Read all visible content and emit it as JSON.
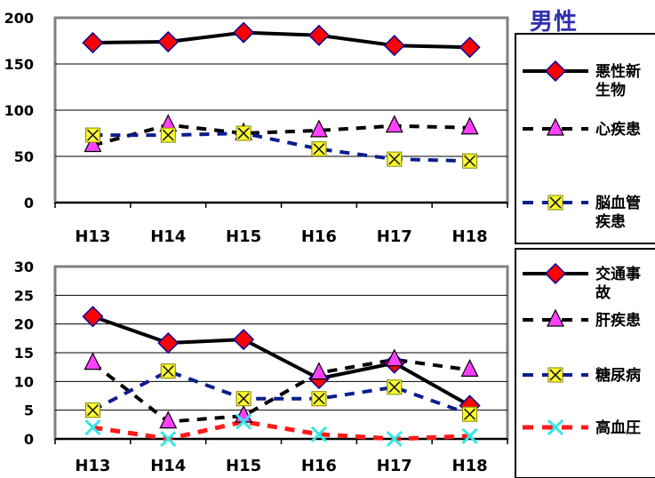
{
  "title": "男性",
  "colors": {
    "plot_bg": "#ffffff",
    "plot_border": "#808080",
    "grid": "#000000",
    "black": "#000000",
    "navy": "#0a1e8c",
    "red_line": "#ff1a1a",
    "diamond_fill": "#ff0000",
    "diamond_edge": "#0000a0",
    "triangle_fill": "#ff40ff",
    "square_fill": "#ffff33",
    "cross_color": "#33e6e6"
  },
  "chart_data": [
    {
      "type": "line",
      "x": [
        "H13",
        "H14",
        "H15",
        "H16",
        "H17",
        "H18"
      ],
      "ylim": [
        0,
        200
      ],
      "yticks": [
        0,
        50,
        100,
        150,
        200
      ],
      "grid": true,
      "legend_position": "right",
      "series": [
        {
          "name": "悪性新生物",
          "legend_lines": [
            "悪性新",
            "生物"
          ],
          "values": [
            173,
            174,
            184,
            181,
            170,
            168
          ],
          "line": "solid",
          "color": "black",
          "marker": "diamond"
        },
        {
          "name": "心疾患",
          "legend_lines": [
            "心疾患"
          ],
          "values": [
            62,
            84,
            75,
            78,
            83,
            81
          ],
          "line": "dashed",
          "color": "black",
          "marker": "triangle"
        },
        {
          "name": "脳血管疾患",
          "legend_lines": [
            "脳血管",
            "疾患"
          ],
          "values": [
            73,
            73,
            75,
            58,
            47,
            45
          ],
          "line": "dashed",
          "color": "navy",
          "marker": "square-x"
        }
      ]
    },
    {
      "type": "line",
      "x": [
        "H13",
        "H14",
        "H15",
        "H16",
        "H17",
        "H18"
      ],
      "ylim": [
        0,
        30
      ],
      "yticks": [
        0,
        5,
        10,
        15,
        20,
        25,
        30
      ],
      "grid": true,
      "legend_position": "right",
      "series": [
        {
          "name": "交通事故",
          "legend_lines": [
            "交通事",
            "故"
          ],
          "values": [
            21.3,
            16.7,
            17.3,
            10.5,
            13.2,
            5.8
          ],
          "line": "solid",
          "color": "black",
          "marker": "diamond"
        },
        {
          "name": "肝疾患",
          "legend_lines": [
            "肝疾患"
          ],
          "values": [
            13.2,
            3.0,
            4.0,
            11.5,
            13.8,
            12.0
          ],
          "line": "dashed",
          "color": "black",
          "marker": "triangle"
        },
        {
          "name": "糖尿病",
          "legend_lines": [
            "糖尿病"
          ],
          "values": [
            5.0,
            11.8,
            7.0,
            7.0,
            9.0,
            4.3
          ],
          "line": "dashed",
          "color": "navy",
          "marker": "square-x"
        },
        {
          "name": "高血圧",
          "legend_lines": [
            "高血圧"
          ],
          "values": [
            2.0,
            0.0,
            3.0,
            0.8,
            0.0,
            0.5
          ],
          "line": "dashed",
          "color": "red_line",
          "marker": "cross"
        }
      ]
    }
  ]
}
